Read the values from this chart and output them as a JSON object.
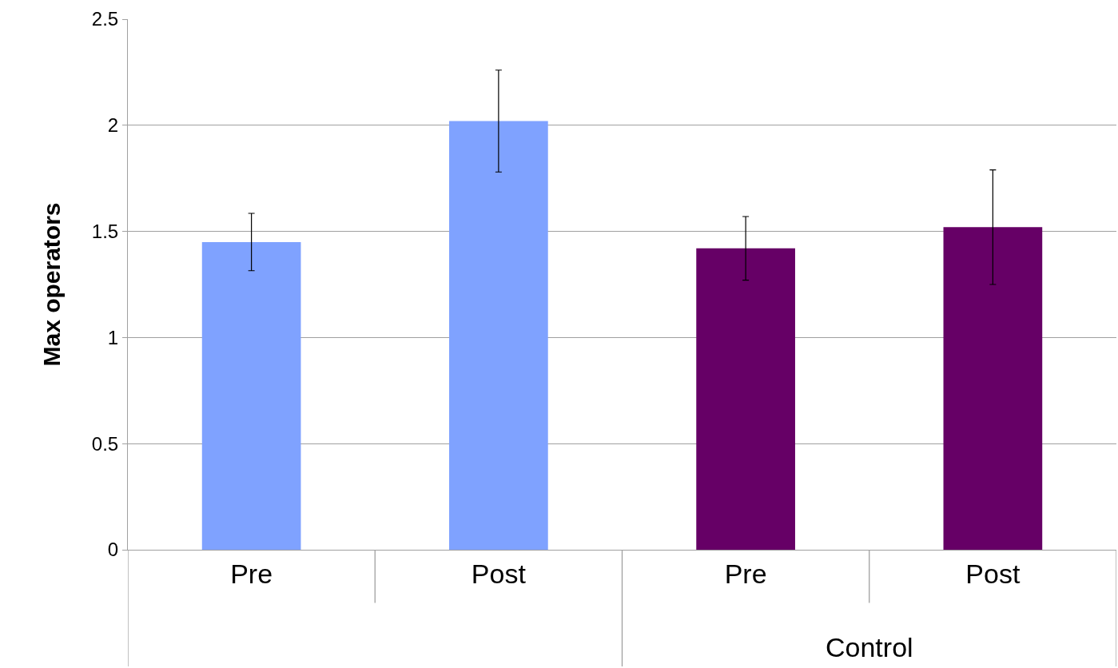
{
  "chart_data": {
    "type": "bar",
    "ylabel": "Max operators",
    "categories": [
      "Pre",
      "Post",
      "Pre",
      "Post"
    ],
    "values": [
      1.45,
      2.02,
      1.42,
      1.52
    ],
    "errors": [
      0.135,
      0.24,
      0.15,
      0.27
    ],
    "colors": [
      "#7fa2ff",
      "#7fa2ff",
      "#660066",
      "#660066"
    ],
    "annotations": [
      "Control"
    ],
    "ylim": [
      0,
      2.5
    ],
    "yticks": [
      0,
      0.5,
      1,
      1.5,
      2,
      2.5
    ],
    "grid": "y",
    "legend": false
  }
}
